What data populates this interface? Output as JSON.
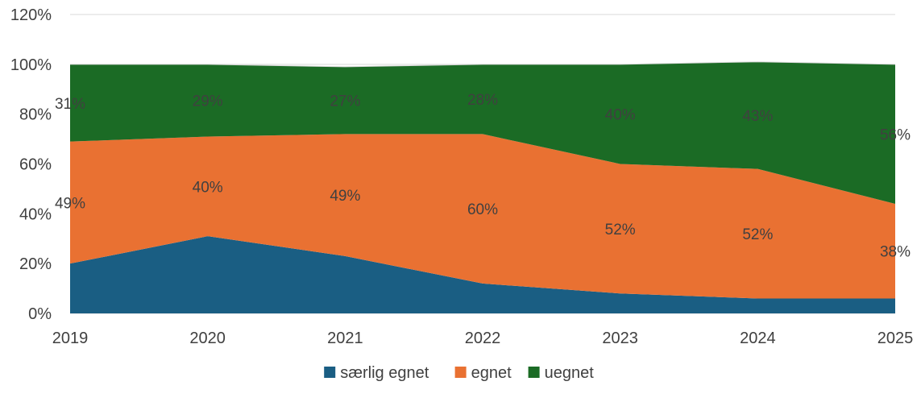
{
  "chart_data": {
    "type": "area",
    "stacked": true,
    "x": [
      "2019",
      "2020",
      "2021",
      "2022",
      "2023",
      "2024",
      "2025"
    ],
    "ylim": [
      0,
      120
    ],
    "yticks": [
      "0%",
      "20%",
      "40%",
      "60%",
      "80%",
      "100%",
      "120%"
    ],
    "grid": "horizontal",
    "legend_position": "bottom",
    "series": [
      {
        "name": "særlig egnet",
        "color": "#1a5e83",
        "values": [
          20,
          31,
          23,
          12,
          8,
          6,
          6
        ],
        "labels": [
          "",
          "",
          "",
          "",
          "",
          "",
          ""
        ]
      },
      {
        "name": "egnet",
        "color": "#e97132",
        "values": [
          49,
          40,
          49,
          60,
          52,
          52,
          38
        ],
        "labels": [
          "49%",
          "40%",
          "49%",
          "60%",
          "52%",
          "52%",
          "38%"
        ]
      },
      {
        "name": "uegnet",
        "color": "#1b6b25",
        "values": [
          31,
          29,
          27,
          28,
          40,
          43,
          56
        ],
        "labels": [
          "31%",
          "29%",
          "27%",
          "28%",
          "40%",
          "43%",
          "56%"
        ]
      }
    ]
  }
}
